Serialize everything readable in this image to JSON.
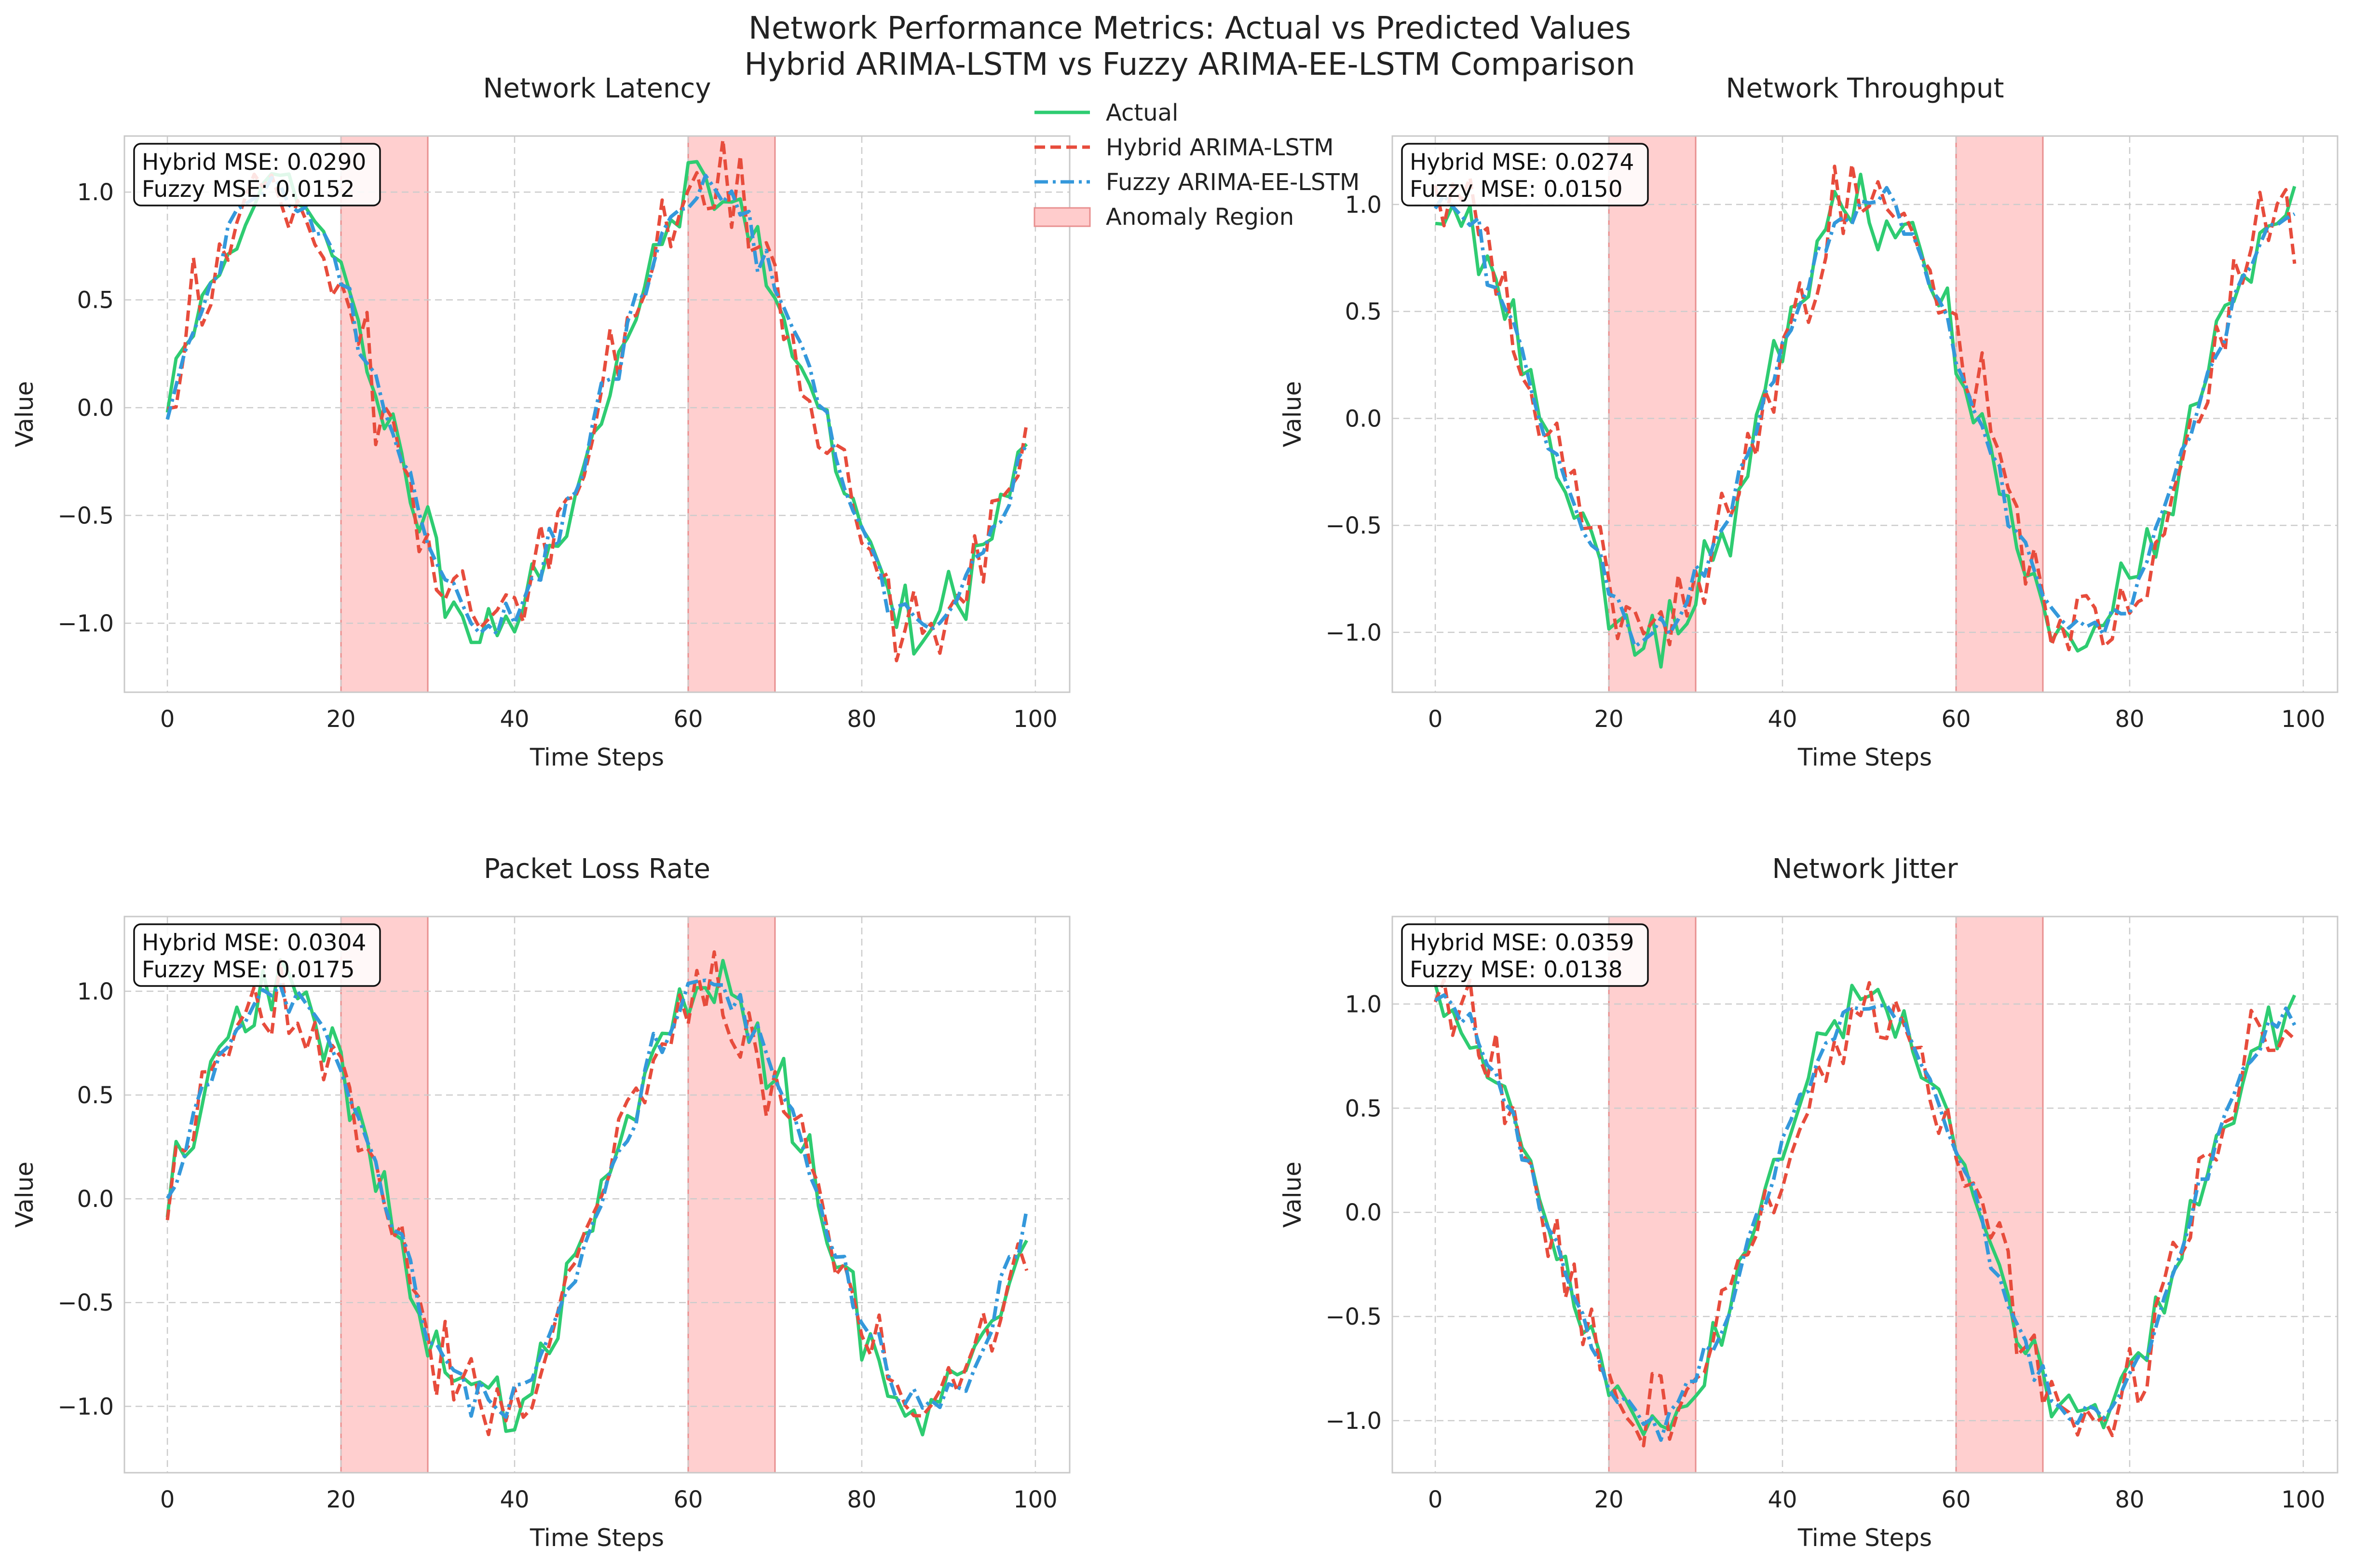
{
  "figure": {
    "title_line1": "Network Performance Metrics: Actual vs Predicted Values",
    "title_line2": "Hybrid ARIMA-LSTM vs Fuzzy ARIMA-EE-LSTM Comparison"
  },
  "legend": {
    "placement": "upper-center",
    "entries": [
      {
        "label": "Actual",
        "style": "solid",
        "color": "#2ecc71"
      },
      {
        "label": "Hybrid ARIMA-LSTM",
        "style": "dashed",
        "color": "#e74c3c"
      },
      {
        "label": "Fuzzy ARIMA-EE-LSTM",
        "style": "dashdot",
        "color": "#3498db"
      },
      {
        "label": "Anomaly Region",
        "style": "patch",
        "color": "#ffcccc"
      }
    ]
  },
  "chart_data": [
    {
      "type": "line",
      "title": "Network Latency",
      "xlabel": "Time Steps",
      "ylabel": "Value",
      "xlim": [
        -4.95,
        103.95
      ],
      "ylim": [
        -1.32,
        1.26
      ],
      "xticks": [
        0,
        20,
        40,
        60,
        80,
        100
      ],
      "yticks": [
        -1.0,
        -0.5,
        0.0,
        0.5,
        1.0
      ],
      "ytick_labels": [
        "−1.0",
        "−0.5",
        "0.0",
        "0.5",
        "1.0"
      ],
      "grid": true,
      "anomaly_regions": [
        [
          20,
          30
        ],
        [
          60,
          70
        ]
      ],
      "mse_labels": [
        "Hybrid MSE: 0.0290",
        "Fuzzy MSE: 0.0152"
      ],
      "wave": "sin",
      "amplitude": 1.0,
      "noise": {
        "actual": 0.08,
        "hybrid": 0.12,
        "fuzzy": 0.05
      },
      "seed": 11,
      "series": [
        {
          "name": "Actual",
          "color": "#2ecc71"
        },
        {
          "name": "Hybrid ARIMA-LSTM",
          "color": "#e74c3c"
        },
        {
          "name": "Fuzzy ARIMA-EE-LSTM",
          "color": "#3498db"
        }
      ]
    },
    {
      "type": "line",
      "title": "Network Throughput",
      "xlabel": "Time Steps",
      "ylabel": "Value",
      "xlim": [
        -4.95,
        103.95
      ],
      "ylim": [
        -1.28,
        1.32
      ],
      "xticks": [
        0,
        20,
        40,
        60,
        80,
        100
      ],
      "yticks": [
        -1.0,
        -0.5,
        0.0,
        0.5,
        1.0
      ],
      "ytick_labels": [
        "−1.0",
        "−0.5",
        "0.0",
        "0.5",
        "1.0"
      ],
      "grid": true,
      "anomaly_regions": [
        [
          20,
          30
        ],
        [
          60,
          70
        ]
      ],
      "mse_labels": [
        "Hybrid MSE: 0.0274",
        "Fuzzy MSE: 0.0150"
      ],
      "wave": "cos",
      "amplitude": 1.0,
      "noise": {
        "actual": 0.08,
        "hybrid": 0.12,
        "fuzzy": 0.05
      },
      "seed": 23,
      "series": [
        {
          "name": "Actual",
          "color": "#2ecc71"
        },
        {
          "name": "Hybrid ARIMA-LSTM",
          "color": "#e74c3c"
        },
        {
          "name": "Fuzzy ARIMA-EE-LSTM",
          "color": "#3498db"
        }
      ]
    },
    {
      "type": "line",
      "title": "Packet Loss Rate",
      "xlabel": "Time Steps",
      "ylabel": "Value",
      "xlim": [
        -4.95,
        103.95
      ],
      "ylim": [
        -1.32,
        1.36
      ],
      "xticks": [
        0,
        20,
        40,
        60,
        80,
        100
      ],
      "yticks": [
        -1.0,
        -0.5,
        0.0,
        0.5,
        1.0
      ],
      "ytick_labels": [
        "−1.0",
        "−0.5",
        "0.0",
        "0.5",
        "1.0"
      ],
      "grid": true,
      "anomaly_regions": [
        [
          20,
          30
        ],
        [
          60,
          70
        ]
      ],
      "mse_labels": [
        "Hybrid MSE: 0.0304",
        "Fuzzy MSE: 0.0175"
      ],
      "wave": "sin",
      "amplitude": 1.0,
      "noise": {
        "actual": 0.08,
        "hybrid": 0.12,
        "fuzzy": 0.05
      },
      "seed": 37,
      "series": [
        {
          "name": "Actual",
          "color": "#2ecc71"
        },
        {
          "name": "Hybrid ARIMA-LSTM",
          "color": "#e74c3c"
        },
        {
          "name": "Fuzzy ARIMA-EE-LSTM",
          "color": "#3498db"
        }
      ]
    },
    {
      "type": "line",
      "title": "Network Jitter",
      "xlabel": "Time Steps",
      "ylabel": "Value",
      "xlim": [
        -4.95,
        103.95
      ],
      "ylim": [
        -1.25,
        1.42
      ],
      "xticks": [
        0,
        20,
        40,
        60,
        80,
        100
      ],
      "yticks": [
        -1.0,
        -0.5,
        0.0,
        0.5,
        1.0
      ],
      "ytick_labels": [
        "−1.0",
        "−0.5",
        "0.0",
        "0.5",
        "1.0"
      ],
      "grid": true,
      "anomaly_regions": [
        [
          20,
          30
        ],
        [
          60,
          70
        ]
      ],
      "mse_labels": [
        "Hybrid MSE: 0.0359",
        "Fuzzy MSE: 0.0138"
      ],
      "wave": "cos",
      "amplitude": 1.0,
      "noise": {
        "actual": 0.07,
        "hybrid": 0.12,
        "fuzzy": 0.04
      },
      "seed": 51,
      "series": [
        {
          "name": "Actual",
          "color": "#2ecc71"
        },
        {
          "name": "Hybrid ARIMA-LSTM",
          "color": "#e74c3c"
        },
        {
          "name": "Fuzzy ARIMA-EE-LSTM",
          "color": "#3498db"
        }
      ]
    }
  ]
}
